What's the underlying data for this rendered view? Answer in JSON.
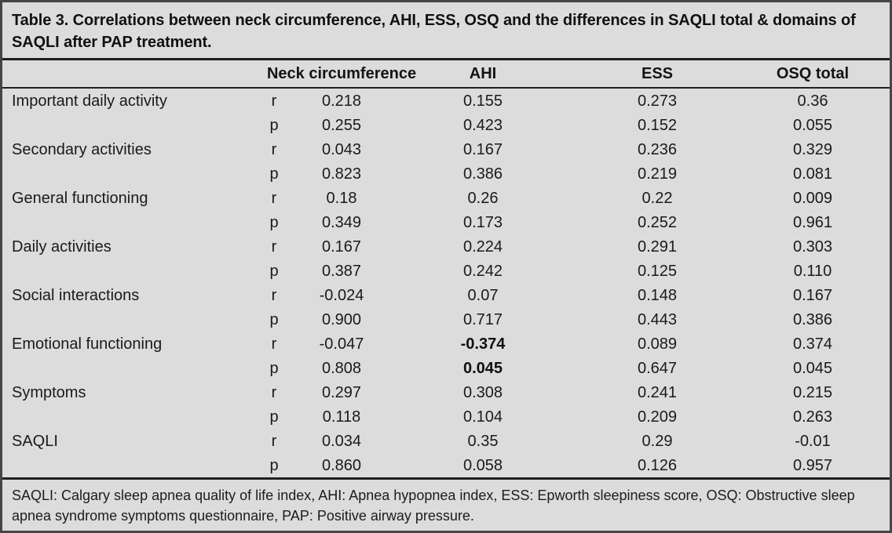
{
  "title": "Table 3. Correlations between neck circumference, AHI, ESS, OSQ and the differences in SAQLI total & domains of SAQLI after PAP treatment.",
  "stat_labels": {
    "r": "r",
    "p": "p"
  },
  "columns": {
    "neck": "Neck circumference",
    "ahi": "AHI",
    "ess": "ESS",
    "osq": "OSQ total"
  },
  "rows": [
    {
      "label": "Important daily activity",
      "r": [
        "0.218",
        "0.155",
        "0.273",
        "0.36"
      ],
      "p": [
        "0.255",
        "0.423",
        "0.152",
        "0.055"
      ]
    },
    {
      "label": "Secondary activities",
      "r": [
        "0.043",
        "0.167",
        "0.236",
        "0.329"
      ],
      "p": [
        "0.823",
        "0.386",
        "0.219",
        "0.081"
      ]
    },
    {
      "label": "General functioning",
      "r": [
        "0.18",
        "0.26",
        "0.22",
        "0.009"
      ],
      "p": [
        "0.349",
        "0.173",
        "0.252",
        "0.961"
      ]
    },
    {
      "label": "Daily activities",
      "r": [
        "0.167",
        "0.224",
        "0.291",
        "0.303"
      ],
      "p": [
        "0.387",
        "0.242",
        "0.125",
        "0.110"
      ]
    },
    {
      "label": "Social interactions",
      "r": [
        "-0.024",
        "0.07",
        "0.148",
        "0.167"
      ],
      "p": [
        "0.900",
        "0.717",
        "0.443",
        "0.386"
      ]
    },
    {
      "label": "Emotional functioning",
      "r": [
        "-0.047",
        "-0.374",
        "0.089",
        "0.374"
      ],
      "p": [
        "0.808",
        "0.045",
        "0.647",
        "0.045"
      ]
    },
    {
      "label": "Symptoms",
      "r": [
        "0.297",
        "0.308",
        "0.241",
        "0.215"
      ],
      "p": [
        "0.118",
        "0.104",
        "0.209",
        "0.263"
      ]
    },
    {
      "label": "SAQLI",
      "r": [
        "0.034",
        "0.35",
        "0.29",
        "-0.01"
      ],
      "p": [
        "0.860",
        "0.058",
        "0.126",
        "0.957"
      ]
    }
  ],
  "footnote": "SAQLI: Calgary sleep apnea quality of life index, AHI: Apnea hypopnea index, ESS: Epworth sleepiness score, OSQ: Obstructive sleep apnea syndrome symptoms questionnaire, PAP: Positive airway pressure.",
  "colors": {
    "background": "#dcdcdc",
    "text": "#1a1a1a",
    "rule": "#1f1f1f",
    "border": "#454545"
  }
}
